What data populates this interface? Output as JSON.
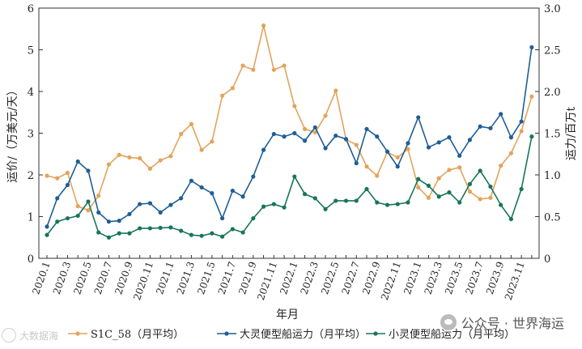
{
  "chart_data": {
    "type": "line",
    "xlabel": "年月",
    "ylabel": "运价/（万美元/天）",
    "y2label": "运力/百万t",
    "ylim": [
      0,
      6
    ],
    "y2lim": [
      0,
      3
    ],
    "yticks": [
      "0",
      "1",
      "2",
      "3",
      "4",
      "5",
      "6"
    ],
    "y2ticks": [
      "0",
      "0.5",
      "1.0",
      "1.5",
      "2.0",
      "2.5",
      "3.0"
    ],
    "xtick_labels": [
      "2020.1",
      "2020.3",
      "2020.5",
      "2020.7",
      "2020.9",
      "2020.11",
      "2021.1",
      "2021.3",
      "2021.5",
      "2021.7",
      "2021.9",
      "2021.11",
      "2022.1",
      "2022.3",
      "2022.5",
      "2022.7",
      "2022.9",
      "2022.11",
      "2023.1",
      "2023.3",
      "2023.5",
      "2023.7",
      "2023.9",
      "2023.11"
    ],
    "legend_position": "bottom",
    "series": [
      {
        "name": "S1C_58（月平均）",
        "axis": "left",
        "color": "#e3a35c",
        "values": [
          1.98,
          1.92,
          2.05,
          1.25,
          1.15,
          1.5,
          2.25,
          2.48,
          2.42,
          2.4,
          2.15,
          2.35,
          2.45,
          2.98,
          3.22,
          2.6,
          2.8,
          3.9,
          4.08,
          4.62,
          4.52,
          5.58,
          4.52,
          4.62,
          3.65,
          3.1,
          3.02,
          3.42,
          4.02,
          2.85,
          2.72,
          2.2,
          1.98,
          2.55,
          2.42,
          2.62,
          1.7,
          1.45,
          1.92,
          2.12,
          2.18,
          1.6,
          1.42,
          1.45,
          2.22,
          2.52,
          3.05,
          3.88
        ]
      },
      {
        "name": "大灵便型船运力（月平均）",
        "axis": "right",
        "color": "#1f5e96",
        "values": [
          0.38,
          0.72,
          0.88,
          1.16,
          1.05,
          0.55,
          0.44,
          0.45,
          0.53,
          0.65,
          0.66,
          0.55,
          0.64,
          0.72,
          0.93,
          0.85,
          0.78,
          0.48,
          0.81,
          0.74,
          0.98,
          1.3,
          1.49,
          1.46,
          1.5,
          1.41,
          1.57,
          1.32,
          1.47,
          1.43,
          1.14,
          1.55,
          1.46,
          1.28,
          1.1,
          1.38,
          1.69,
          1.33,
          1.39,
          1.45,
          1.23,
          1.42,
          1.58,
          1.56,
          1.73,
          1.45,
          1.64,
          2.53
        ]
      },
      {
        "name": "小灵便型船运力（月平均）",
        "axis": "right",
        "color": "#18755a",
        "values": [
          0.28,
          0.44,
          0.48,
          0.51,
          0.68,
          0.31,
          0.25,
          0.3,
          0.3,
          0.36,
          0.36,
          0.365,
          0.37,
          0.33,
          0.28,
          0.27,
          0.3,
          0.26,
          0.35,
          0.31,
          0.48,
          0.62,
          0.65,
          0.61,
          0.98,
          0.77,
          0.72,
          0.59,
          0.69,
          0.69,
          0.69,
          0.83,
          0.67,
          0.64,
          0.65,
          0.67,
          0.95,
          0.87,
          0.74,
          0.79,
          0.67,
          0.89,
          1.05,
          0.86,
          0.64,
          0.47,
          0.83,
          1.46
        ]
      }
    ]
  },
  "watermark": {
    "right": "公众号 · 世界海运",
    "left": "大数据海"
  }
}
